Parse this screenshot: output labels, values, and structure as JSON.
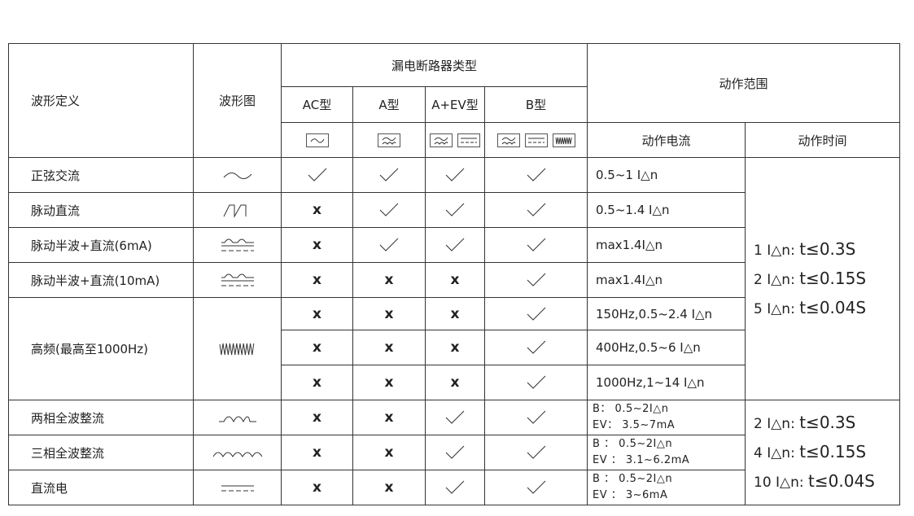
{
  "header": {
    "wave_def": "波形定义",
    "wave_img": "波形图",
    "breaker_types": "漏电断路器类型",
    "action_range": "动作范围",
    "types": [
      "AC型",
      "A型",
      "A+EV型",
      "B型"
    ],
    "action_current": "动作电流",
    "action_time": "动作时间"
  },
  "type_icons": [
    [
      "sine-box"
    ],
    [
      "pulse-box"
    ],
    [
      "pulse-box",
      "dc-box"
    ],
    [
      "pulse-box",
      "dc-box",
      "hf-box"
    ]
  ],
  "rows": [
    {
      "name": "正弦交流",
      "wave": "sine",
      "marks": [
        "check",
        "check",
        "check",
        "check"
      ],
      "current": [
        "0.5~1 I△n"
      ]
    },
    {
      "name": "脉动直流",
      "wave": "pulse",
      "marks": [
        "x",
        "check",
        "check",
        "check"
      ],
      "current": [
        "0.5~1.4 I△n"
      ]
    },
    {
      "name": "脉动半波+直流(6mA)",
      "wave": "halfwave-dc",
      "marks": [
        "x",
        "check",
        "check",
        "check"
      ],
      "current": [
        "max1.4I△n"
      ]
    },
    {
      "name": "脉动半波+直流(10mA)",
      "wave": "halfwave-dc",
      "marks": [
        "x",
        "x",
        "x",
        "check"
      ],
      "current": [
        "max1.4I△n"
      ]
    },
    {
      "name": "高频(最高至1000Hz)",
      "wave": "high-freq",
      "marks": [
        "x",
        "x",
        "x",
        "check"
      ],
      "current": [
        "150Hz,0.5~2.4 I△n"
      ]
    },
    {
      "name": "",
      "wave": "",
      "marks": [
        "x",
        "x",
        "x",
        "check"
      ],
      "current": [
        "400Hz,0.5~6 I△n"
      ]
    },
    {
      "name": "",
      "wave": "",
      "marks": [
        "x",
        "x",
        "x",
        "check"
      ],
      "current": [
        "1000Hz,1~14 I△n"
      ]
    },
    {
      "name": "两相全波整流",
      "wave": "two-phase",
      "marks": [
        "x",
        "x",
        "check",
        "check"
      ],
      "current": [
        "B： 0.5~2I△n",
        "EV： 3.5~7mA"
      ]
    },
    {
      "name": "三相全波整流",
      "wave": "three-phase",
      "marks": [
        "x",
        "x",
        "check",
        "check"
      ],
      "current": [
        "B ： 0.5~2I△n",
        "EV ： 3.1~6.2mA"
      ]
    },
    {
      "name": "直流电",
      "wave": "dc",
      "marks": [
        "x",
        "x",
        "check",
        "check"
      ],
      "current": [
        "B ： 0.5~2I△n",
        "EV ： 3~6mA"
      ]
    }
  ],
  "times1": [
    {
      "k": "1 I△n: ",
      "v": "t≤0.3S"
    },
    {
      "k": "2 I△n: ",
      "v": "t≤0.15S"
    },
    {
      "k": "5 I△n: ",
      "v": "t≤0.04S"
    }
  ],
  "times2": [
    {
      "k": "2 I△n: ",
      "v": "t≤0.3S"
    },
    {
      "k": "4 I△n: ",
      "v": "t≤0.15S"
    },
    {
      "k": "10 I△n: ",
      "v": "t≤0.04S"
    }
  ],
  "x_label": "x"
}
